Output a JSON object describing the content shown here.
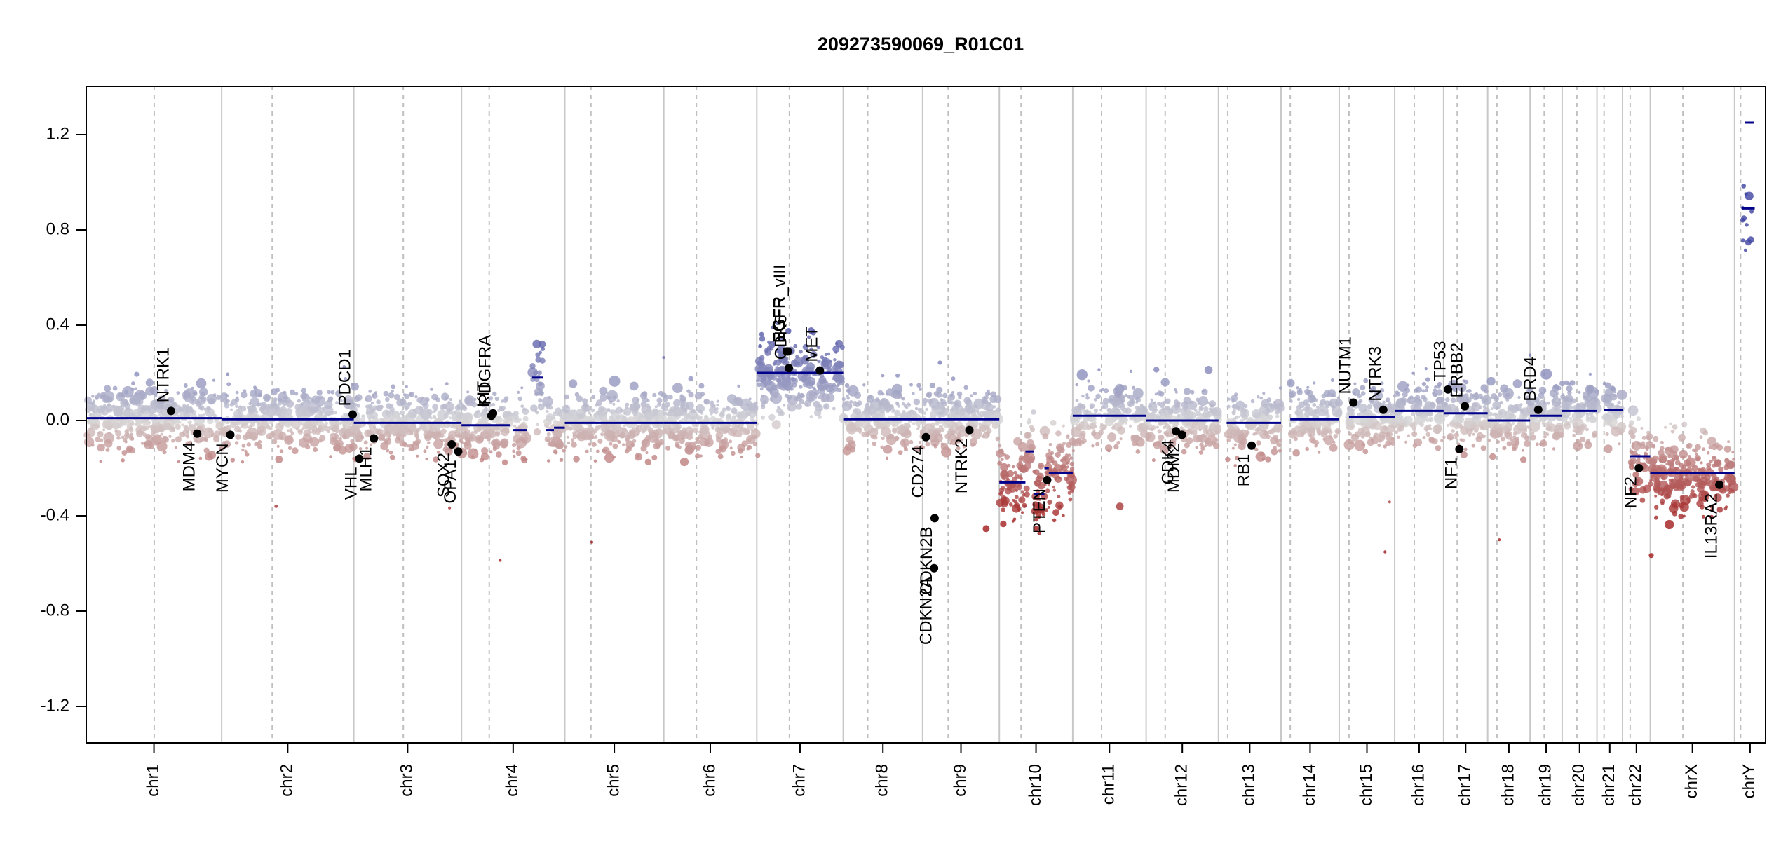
{
  "chart_data": {
    "type": "scatter",
    "title": "209273590069_R01C01",
    "xlabel": "",
    "ylabel": "",
    "ylim": [
      -1.35,
      1.35
    ],
    "yticks": [
      1.2,
      0.8,
      0.4,
      0.0,
      -0.4,
      -0.8,
      -1.2
    ],
    "ytick_labels": [
      "1.2",
      "0.8",
      "0.4",
      "0.0",
      "-0.4",
      "-0.8",
      "-1.2"
    ],
    "grid": false,
    "colors": {
      "gain": "#3f44a0",
      "loss": "#a01818",
      "neutral": "#d8d8d8",
      "segment": "#00008b",
      "gene_point": "#000000",
      "chrom_boundary": "#c8c8c8",
      "centromere": "#c0c0c0"
    },
    "chromosomes": [
      {
        "name": "chr1",
        "start": 0,
        "end": 249,
        "centromere": 125
      },
      {
        "name": "chr2",
        "start": 249,
        "end": 492,
        "centromere": 342
      },
      {
        "name": "chr3",
        "start": 492,
        "end": 690,
        "centromere": 583
      },
      {
        "name": "chr4",
        "start": 690,
        "end": 880,
        "centromere": 741
      },
      {
        "name": "chr5",
        "start": 880,
        "end": 1062,
        "centromere": 928
      },
      {
        "name": "chr6",
        "start": 1062,
        "end": 1233,
        "centromere": 1122
      },
      {
        "name": "chr7",
        "start": 1233,
        "end": 1392,
        "centromere": 1293
      },
      {
        "name": "chr8",
        "start": 1392,
        "end": 1538,
        "centromere": 1437
      },
      {
        "name": "chr9",
        "start": 1538,
        "end": 1679,
        "centromere": 1585
      },
      {
        "name": "chr10",
        "start": 1679,
        "end": 1814,
        "centromere": 1719
      },
      {
        "name": "chr11",
        "start": 1814,
        "end": 1949,
        "centromere": 1867
      },
      {
        "name": "chr12",
        "start": 1949,
        "end": 2082,
        "centromere": 1984
      },
      {
        "name": "chr13",
        "start": 2082,
        "end": 2197,
        "centromere": 2099
      },
      {
        "name": "chr14",
        "start": 2197,
        "end": 2304,
        "centromere": 2214
      },
      {
        "name": "chr15",
        "start": 2304,
        "end": 2406,
        "centromere": 2322
      },
      {
        "name": "chr16",
        "start": 2406,
        "end": 2496,
        "centromere": 2442
      },
      {
        "name": "chr17",
        "start": 2496,
        "end": 2577,
        "centromere": 2521
      },
      {
        "name": "chr18",
        "start": 2577,
        "end": 2655,
        "centromere": 2594
      },
      {
        "name": "chr19",
        "start": 2655,
        "end": 2714,
        "centromere": 2681
      },
      {
        "name": "chr20",
        "start": 2714,
        "end": 2778,
        "centromere": 2741
      },
      {
        "name": "chr21",
        "start": 2778,
        "end": 2825,
        "centromere": 2791
      },
      {
        "name": "chr22",
        "start": 2825,
        "end": 2876,
        "centromere": 2839
      },
      {
        "name": "chrX",
        "start": 2876,
        "end": 3031,
        "centromere": 2936
      },
      {
        "name": "chrY",
        "start": 3031,
        "end": 3088,
        "centromere": 3042
      }
    ],
    "segments": [
      {
        "x0": 0,
        "x1": 249,
        "y": 0.01
      },
      {
        "x0": 249,
        "x1": 492,
        "y": 0.005
      },
      {
        "x0": 492,
        "x1": 690,
        "y": -0.01
      },
      {
        "x0": 690,
        "x1": 780,
        "y": -0.02
      },
      {
        "x0": 785,
        "x1": 810,
        "y": -0.04
      },
      {
        "x0": 820,
        "x1": 840,
        "y": 0.18
      },
      {
        "x0": 845,
        "x1": 860,
        "y": -0.04
      },
      {
        "x0": 860,
        "x1": 880,
        "y": -0.03
      },
      {
        "x0": 880,
        "x1": 1062,
        "y": -0.01
      },
      {
        "x0": 1062,
        "x1": 1233,
        "y": -0.01
      },
      {
        "x0": 1233,
        "x1": 1392,
        "y": 0.2
      },
      {
        "x0": 1392,
        "x1": 1538,
        "y": 0.005
      },
      {
        "x0": 1538,
        "x1": 1679,
        "y": 0.005
      },
      {
        "x0": 1679,
        "x1": 1727,
        "y": -0.26
      },
      {
        "x0": 1727,
        "x1": 1742,
        "y": -0.13
      },
      {
        "x0": 1742,
        "x1": 1762,
        "y": -0.31
      },
      {
        "x0": 1762,
        "x1": 1770,
        "y": -0.2
      },
      {
        "x0": 1770,
        "x1": 1814,
        "y": -0.22
      },
      {
        "x0": 1814,
        "x1": 1949,
        "y": 0.02
      },
      {
        "x0": 1949,
        "x1": 2082,
        "y": 0.0
      },
      {
        "x0": 2097,
        "x1": 2197,
        "y": -0.01
      },
      {
        "x0": 2214,
        "x1": 2304,
        "y": 0.005
      },
      {
        "x0": 2322,
        "x1": 2406,
        "y": 0.015
      },
      {
        "x0": 2406,
        "x1": 2496,
        "y": 0.04
      },
      {
        "x0": 2496,
        "x1": 2577,
        "y": 0.03
      },
      {
        "x0": 2577,
        "x1": 2655,
        "y": 0.0
      },
      {
        "x0": 2655,
        "x1": 2714,
        "y": 0.02
      },
      {
        "x0": 2714,
        "x1": 2778,
        "y": 0.04
      },
      {
        "x0": 2791,
        "x1": 2825,
        "y": 0.045
      },
      {
        "x0": 2839,
        "x1": 2876,
        "y": -0.15
      },
      {
        "x0": 2876,
        "x1": 3031,
        "y": -0.22
      },
      {
        "x0": 3045,
        "x1": 3068,
        "y": 0.89
      },
      {
        "x0": 3050,
        "x1": 3066,
        "y": 1.25
      }
    ],
    "genes": [
      {
        "name": "NTRK1",
        "x": 156,
        "y": 0.04,
        "label_side": "above"
      },
      {
        "name": "MDM4",
        "x": 204,
        "y": -0.055,
        "label_side": "below"
      },
      {
        "name": "MYCN",
        "x": 265,
        "y": -0.06,
        "label_side": "below"
      },
      {
        "name": "PDCD1",
        "x": 490,
        "y": 0.025,
        "label_side": "above"
      },
      {
        "name": "VHL",
        "x": 502,
        "y": -0.16,
        "label_side": "below"
      },
      {
        "name": "MLH1",
        "x": 529,
        "y": -0.075,
        "label_side": "below"
      },
      {
        "name": "SOX2",
        "x": 672,
        "y": -0.1,
        "label_side": "below"
      },
      {
        "name": "OPA1",
        "x": 684,
        "y": -0.13,
        "label_side": "below"
      },
      {
        "name": "KIT",
        "x": 745,
        "y": 0.02,
        "label_side": "above"
      },
      {
        "name": "PDGFRA",
        "x": 748,
        "y": 0.03,
        "label_side": "above"
      },
      {
        "name": "EGFR",
        "x": 1288,
        "y": 0.29,
        "label_side": "above"
      },
      {
        "name": "EGFR_vIII",
        "x": 1290,
        "y": 0.29,
        "label_side": "above"
      },
      {
        "name": "CDK6",
        "x": 1292,
        "y": 0.22,
        "label_side": "above"
      },
      {
        "name": "MET",
        "x": 1349,
        "y": 0.21,
        "label_side": "above"
      },
      {
        "name": "CD274",
        "x": 1544,
        "y": -0.07,
        "label_side": "below"
      },
      {
        "name": "CDKN2A",
        "x": 1559,
        "y": -0.62,
        "label_side": "below"
      },
      {
        "name": "CDKN2B",
        "x": 1560,
        "y": -0.41,
        "label_side": "below"
      },
      {
        "name": "NTRK2",
        "x": 1624,
        "y": -0.04,
        "label_side": "below"
      },
      {
        "name": "PTEN",
        "x": 1767,
        "y": -0.25,
        "label_side": "below"
      },
      {
        "name": "CDK4",
        "x": 2004,
        "y": -0.045,
        "label_side": "below"
      },
      {
        "name": "MDM2",
        "x": 2015,
        "y": -0.06,
        "label_side": "below"
      },
      {
        "name": "RB1",
        "x": 2143,
        "y": -0.105,
        "label_side": "below"
      },
      {
        "name": "NUTM1",
        "x": 2330,
        "y": 0.075,
        "label_side": "above"
      },
      {
        "name": "NTRK3",
        "x": 2385,
        "y": 0.045,
        "label_side": "above"
      },
      {
        "name": "TP53",
        "x": 2504,
        "y": 0.13,
        "label_side": "above"
      },
      {
        "name": "ERBB2",
        "x": 2535,
        "y": 0.06,
        "label_side": "above"
      },
      {
        "name": "NF1",
        "x": 2525,
        "y": -0.12,
        "label_side": "below"
      },
      {
        "name": "BRD4",
        "x": 2670,
        "y": 0.045,
        "label_side": "above"
      },
      {
        "name": "NF2",
        "x": 2855,
        "y": -0.2,
        "label_side": "below"
      },
      {
        "name": "IL13RA2",
        "x": 3003,
        "y": -0.27,
        "label_side": "below"
      }
    ]
  }
}
